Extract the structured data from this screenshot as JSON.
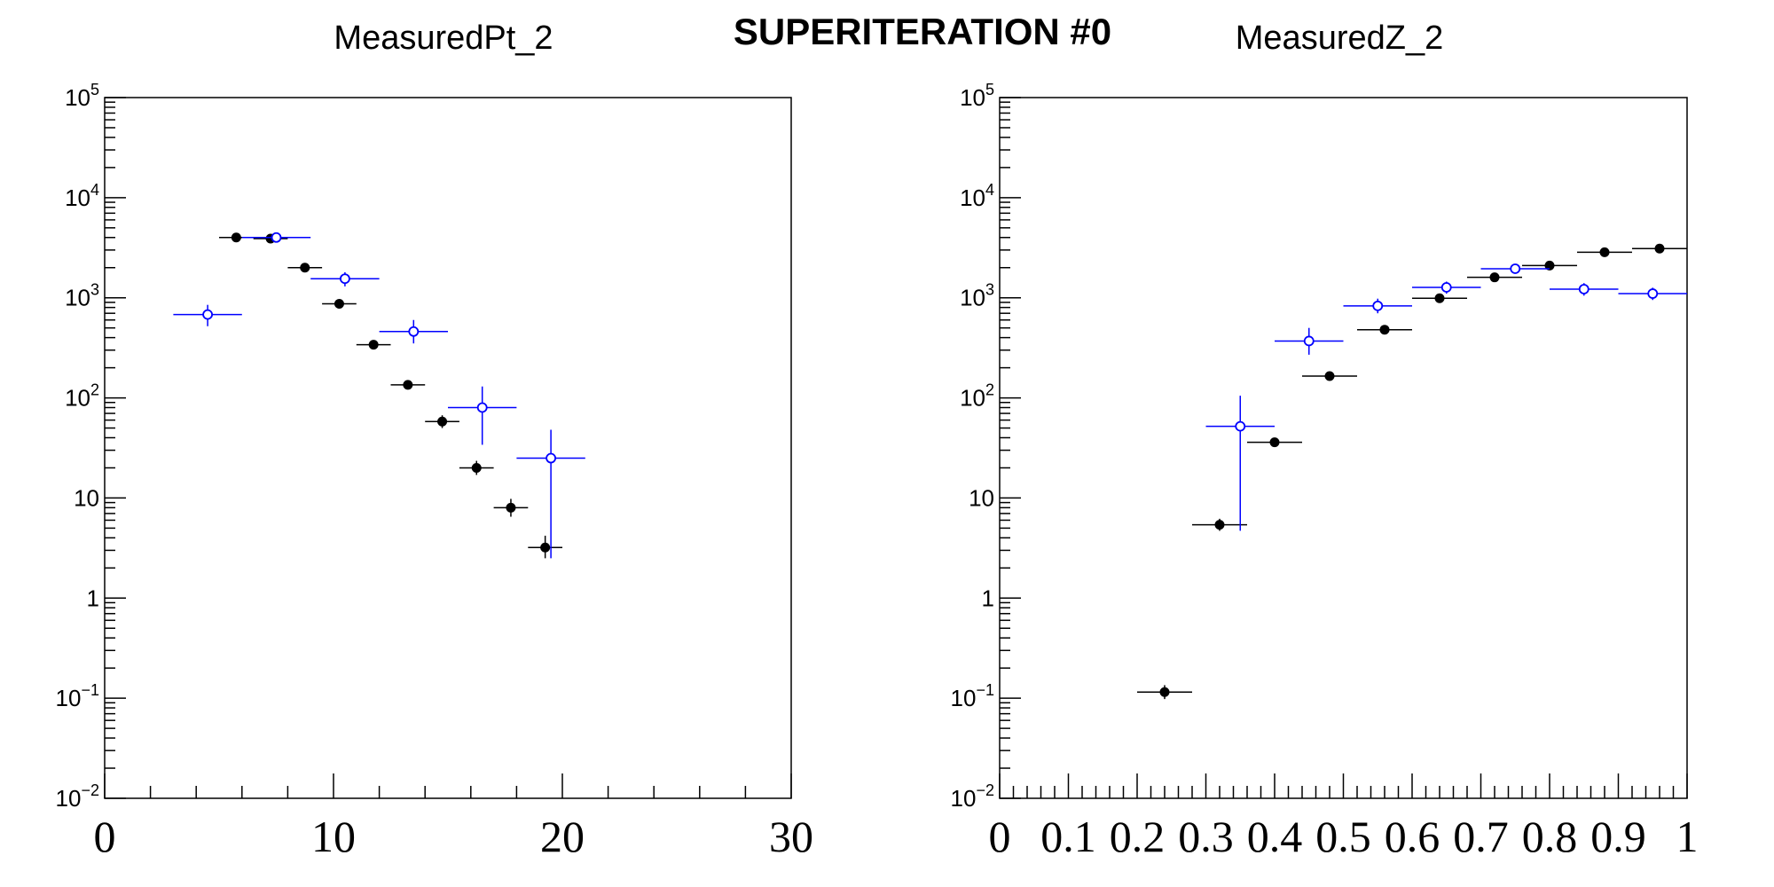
{
  "page_title": "SUPERITERATION #0",
  "colors": {
    "measured": "#000000",
    "unfolded": "#0000ff",
    "frame": "#000000"
  },
  "chart_data": [
    {
      "type": "scatter",
      "title": "MeasuredPt_2",
      "xlim": [
        0,
        30
      ],
      "ylim": [
        0.01,
        100000
      ],
      "yscale": "log",
      "x_tick_labels": [
        "0",
        "10",
        "20",
        "30"
      ],
      "x_tick_values": [
        0,
        10,
        20,
        30
      ],
      "x_minor_step": 2,
      "y_tick_labels": [
        {
          "base": "10",
          "exp": "5"
        },
        {
          "base": "10",
          "exp": "4"
        },
        {
          "base": "10",
          "exp": "3"
        },
        {
          "base": "10",
          "exp": "2"
        },
        {
          "base": "10",
          "exp": ""
        },
        {
          "base": "1",
          "exp": ""
        },
        {
          "base": "10",
          "exp": "−1"
        },
        {
          "base": "10",
          "exp": "−2"
        }
      ],
      "series": [
        {
          "style": "filled",
          "points": [
            {
              "x": 5.75,
              "y": 4000,
              "xerr": 0.75,
              "ylo": 3850,
              "yhi": 4150
            },
            {
              "x": 7.25,
              "y": 3900,
              "xerr": 0.75,
              "ylo": 3750,
              "yhi": 4050
            },
            {
              "x": 8.75,
              "y": 2000,
              "xerr": 0.75,
              "ylo": 1900,
              "yhi": 2100
            },
            {
              "x": 10.25,
              "y": 870,
              "xerr": 0.75,
              "ylo": 820,
              "yhi": 920
            },
            {
              "x": 11.75,
              "y": 340,
              "xerr": 0.75,
              "ylo": 315,
              "yhi": 365
            },
            {
              "x": 13.25,
              "y": 135,
              "xerr": 0.75,
              "ylo": 122,
              "yhi": 150
            },
            {
              "x": 14.75,
              "y": 58,
              "xerr": 0.75,
              "ylo": 50,
              "yhi": 67
            },
            {
              "x": 16.25,
              "y": 20,
              "xerr": 0.75,
              "ylo": 17,
              "yhi": 23.5
            },
            {
              "x": 17.75,
              "y": 8,
              "xerr": 0.75,
              "ylo": 6.5,
              "yhi": 9.8
            },
            {
              "x": 19.25,
              "y": 3.2,
              "xerr": 0.75,
              "ylo": 2.5,
              "yhi": 4.2
            }
          ]
        },
        {
          "style": "open",
          "points": [
            {
              "x": 4.5,
              "y": 680,
              "xerr": 1.5,
              "ylo": 520,
              "yhi": 850
            },
            {
              "x": 7.5,
              "y": 4000,
              "xerr": 1.5,
              "ylo": 3700,
              "yhi": 4300
            },
            {
              "x": 10.5,
              "y": 1550,
              "xerr": 1.5,
              "ylo": 1300,
              "yhi": 1800
            },
            {
              "x": 13.5,
              "y": 460,
              "xerr": 1.5,
              "ylo": 350,
              "yhi": 600
            },
            {
              "x": 16.5,
              "y": 80,
              "xerr": 1.5,
              "ylo": 34,
              "yhi": 130
            },
            {
              "x": 19.5,
              "y": 25,
              "xerr": 1.5,
              "ylo": 2.5,
              "yhi": 48
            }
          ]
        }
      ]
    },
    {
      "type": "scatter",
      "title": "MeasuredZ_2",
      "xlim": [
        0,
        1
      ],
      "ylim": [
        0.01,
        100000
      ],
      "yscale": "log",
      "x_tick_labels": [
        "0",
        "0.1",
        "0.2",
        "0.3",
        "0.4",
        "0.5",
        "0.6",
        "0.7",
        "0.8",
        "0.9",
        "1"
      ],
      "x_tick_values": [
        0,
        0.1,
        0.2,
        0.3,
        0.4,
        0.5,
        0.6,
        0.7,
        0.8,
        0.9,
        1
      ],
      "x_minor_step": 0.02,
      "y_tick_labels": [
        {
          "base": "10",
          "exp": "5"
        },
        {
          "base": "10",
          "exp": "4"
        },
        {
          "base": "10",
          "exp": "3"
        },
        {
          "base": "10",
          "exp": "2"
        },
        {
          "base": "10",
          "exp": ""
        },
        {
          "base": "1",
          "exp": ""
        },
        {
          "base": "10",
          "exp": "−1"
        },
        {
          "base": "10",
          "exp": "−2"
        }
      ],
      "series": [
        {
          "style": "filled",
          "points": [
            {
              "x": 0.24,
              "y": 0.115,
              "xerr": 0.04,
              "ylo": 0.098,
              "yhi": 0.135
            },
            {
              "x": 0.32,
              "y": 5.4,
              "xerr": 0.04,
              "ylo": 4.7,
              "yhi": 6.2
            },
            {
              "x": 0.4,
              "y": 36,
              "xerr": 0.04,
              "ylo": 34,
              "yhi": 38
            },
            {
              "x": 0.48,
              "y": 165,
              "xerr": 0.04,
              "ylo": 158,
              "yhi": 172
            },
            {
              "x": 0.56,
              "y": 480,
              "xerr": 0.04,
              "ylo": 465,
              "yhi": 495
            },
            {
              "x": 0.64,
              "y": 990,
              "xerr": 0.04,
              "ylo": 965,
              "yhi": 1015
            },
            {
              "x": 0.72,
              "y": 1600,
              "xerr": 0.04,
              "ylo": 1565,
              "yhi": 1635
            },
            {
              "x": 0.8,
              "y": 2100,
              "xerr": 0.04,
              "ylo": 2060,
              "yhi": 2140
            },
            {
              "x": 0.88,
              "y": 2850,
              "xerr": 0.04,
              "ylo": 2800,
              "yhi": 2900
            },
            {
              "x": 0.96,
              "y": 3100,
              "xerr": 0.04,
              "ylo": 3050,
              "yhi": 3150
            }
          ]
        },
        {
          "style": "open",
          "points": [
            {
              "x": 0.35,
              "y": 52,
              "xerr": 0.05,
              "ylo": 4.7,
              "yhi": 105
            },
            {
              "x": 0.45,
              "y": 370,
              "xerr": 0.05,
              "ylo": 270,
              "yhi": 500
            },
            {
              "x": 0.55,
              "y": 830,
              "xerr": 0.05,
              "ylo": 700,
              "yhi": 980
            },
            {
              "x": 0.65,
              "y": 1270,
              "xerr": 0.05,
              "ylo": 1100,
              "yhi": 1450
            },
            {
              "x": 0.75,
              "y": 1950,
              "xerr": 0.05,
              "ylo": 1750,
              "yhi": 2150
            },
            {
              "x": 0.85,
              "y": 1220,
              "xerr": 0.05,
              "ylo": 1050,
              "yhi": 1400
            },
            {
              "x": 0.95,
              "y": 1100,
              "xerr": 0.05,
              "ylo": 950,
              "yhi": 1260
            }
          ]
        }
      ]
    }
  ]
}
